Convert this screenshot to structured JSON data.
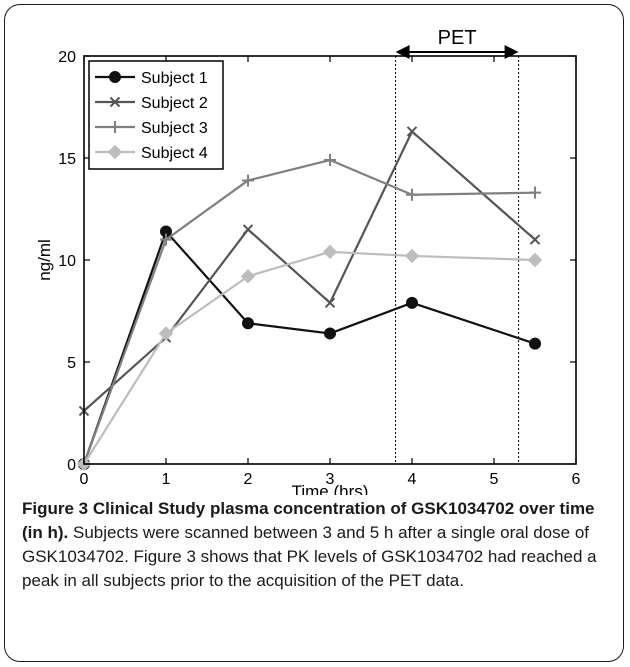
{
  "chart_data": {
    "type": "line",
    "xlabel": "Time (hrs)",
    "ylabel": "ng/ml",
    "xlim": [
      0,
      6
    ],
    "ylim": [
      0,
      20
    ],
    "xticks": [
      "0",
      "1",
      "2",
      "3",
      "4",
      "5",
      "6"
    ],
    "yticks": [
      "0",
      "5",
      "10",
      "15",
      "20"
    ],
    "grid": false,
    "legend_position": "top-left",
    "annotation": {
      "label": "PET",
      "x_start": 3.8,
      "x_end": 5.3
    },
    "series": [
      {
        "name": "Subject 1",
        "marker": "circle",
        "color": "#111111",
        "x": [
          0,
          1,
          2,
          3,
          4,
          5.5
        ],
        "y": [
          0,
          11.4,
          6.9,
          6.4,
          7.9,
          5.9
        ]
      },
      {
        "name": "Subject 2",
        "marker": "x",
        "color": "#555555",
        "x": [
          0,
          1,
          2,
          3,
          4,
          5.5
        ],
        "y": [
          2.6,
          6.2,
          11.5,
          7.9,
          16.3,
          11.0
        ]
      },
      {
        "name": "Subject 3",
        "marker": "plus",
        "color": "#808080",
        "x": [
          0,
          1,
          2,
          3,
          4,
          5.5
        ],
        "y": [
          0,
          11.0,
          13.9,
          14.9,
          13.2,
          13.3
        ]
      },
      {
        "name": "Subject 4",
        "marker": "diamond",
        "color": "#bdbdbd",
        "x": [
          0,
          1,
          2,
          3,
          4,
          5.5
        ],
        "y": [
          0,
          6.4,
          9.2,
          10.4,
          10.2,
          10.0
        ]
      }
    ]
  },
  "caption": {
    "bold_text": "Figure 3 Clinical Study plasma concentration of GSK1034702 over time (in h).",
    "body_text": " Subjects were scanned between 3 and 5 h after a single oral dose of GSK1034702. Figure 3 shows that PK levels of GSK1034702 had reached a peak in all subjects prior to the acquisition of the PET data."
  }
}
